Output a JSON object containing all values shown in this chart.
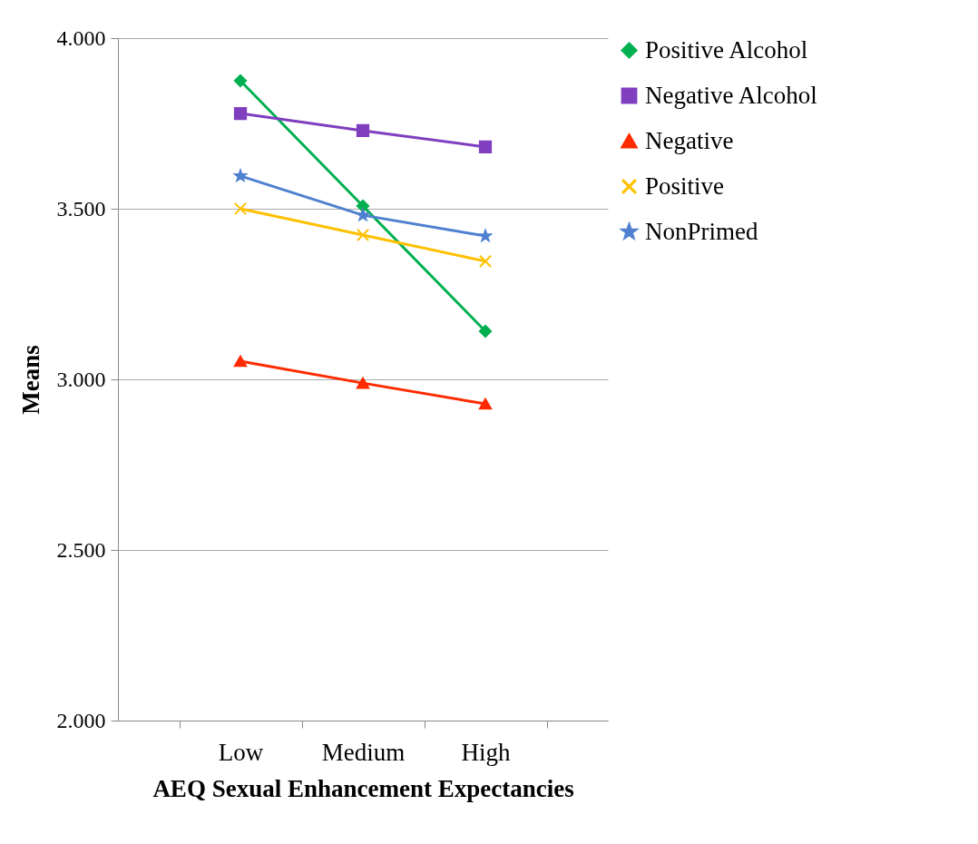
{
  "chart_data": {
    "type": "line",
    "xlabel": "AEQ Sexual Enhancement Expectancies",
    "ylabel": "Means",
    "categories": [
      "Low",
      "Medium",
      "High"
    ],
    "series": [
      {
        "name": "Positive Alcohol",
        "color": "#00b050",
        "marker": "diamond",
        "values": [
          3.875,
          3.508,
          3.141
        ]
      },
      {
        "name": "Negative Alcohol",
        "color": "#7f3fbf",
        "marker": "square",
        "values": [
          3.779,
          3.729,
          3.681
        ]
      },
      {
        "name": "Negative",
        "color": "#ff2a00",
        "marker": "triangle",
        "values": [
          3.053,
          2.989,
          2.928
        ]
      },
      {
        "name": "Positive",
        "color": "#ffc000",
        "marker": "cross",
        "values": [
          3.5,
          3.423,
          3.346
        ]
      },
      {
        "name": "NonPrimed",
        "color": "#4f81d0",
        "marker": "star",
        "values": [
          3.596,
          3.481,
          3.42
        ]
      }
    ],
    "ylim": [
      2,
      4
    ],
    "yticks": [
      {
        "value": 2,
        "label": "2.000"
      },
      {
        "value": 2.5,
        "label": "2.500"
      },
      {
        "value": 3,
        "label": "3.000"
      },
      {
        "value": 3.5,
        "label": "3.500"
      },
      {
        "value": 4,
        "label": "4.000"
      }
    ],
    "grid": "y",
    "legend": "right"
  }
}
